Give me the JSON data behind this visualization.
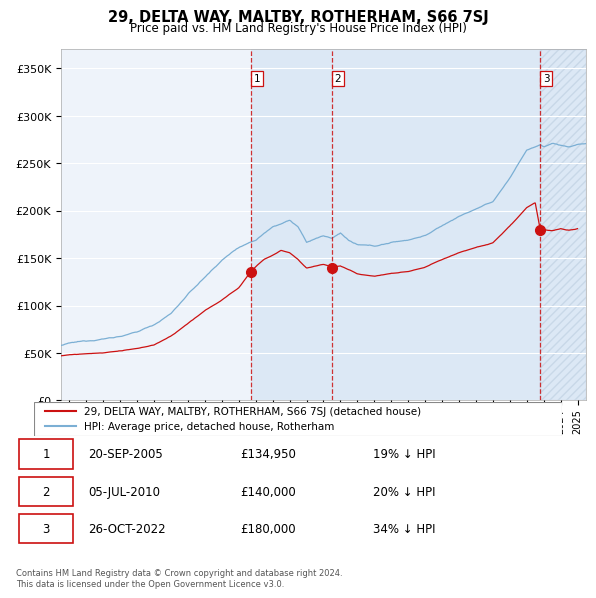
{
  "title": "29, DELTA WAY, MALTBY, ROTHERHAM, S66 7SJ",
  "subtitle": "Price paid vs. HM Land Registry's House Price Index (HPI)",
  "ylabel_ticks": [
    "£0",
    "£50K",
    "£100K",
    "£150K",
    "£200K",
    "£250K",
    "£300K",
    "£350K"
  ],
  "ytick_values": [
    0,
    50000,
    100000,
    150000,
    200000,
    250000,
    300000,
    350000
  ],
  "ylim": [
    0,
    370000
  ],
  "xlim_start": 1994.5,
  "xlim_end": 2025.5,
  "sale_years": [
    2005.72,
    2010.5,
    2022.81
  ],
  "sale_prices": [
    134950,
    140000,
    180000
  ],
  "sale_labels": [
    "1",
    "2",
    "3"
  ],
  "legend_line1": "29, DELTA WAY, MALTBY, ROTHERHAM, S66 7SJ (detached house)",
  "legend_line2": "HPI: Average price, detached house, Rotherham",
  "table_rows": [
    {
      "num": "1",
      "date": "20-SEP-2005",
      "price": "£134,950",
      "pct": "19% ↓ HPI"
    },
    {
      "num": "2",
      "date": "05-JUL-2010",
      "price": "£140,000",
      "pct": "20% ↓ HPI"
    },
    {
      "num": "3",
      "date": "26-OCT-2022",
      "price": "£180,000",
      "pct": "34% ↓ HPI"
    }
  ],
  "footer": "Contains HM Land Registry data © Crown copyright and database right 2024.\nThis data is licensed under the Open Government Licence v3.0.",
  "hpi_color": "#7bafd4",
  "sale_color": "#cc1111",
  "vline_color": "#cc1111",
  "shade_color": "#dce8f5",
  "background_color": "#ffffff",
  "plot_bg_color": "#eef3fa"
}
